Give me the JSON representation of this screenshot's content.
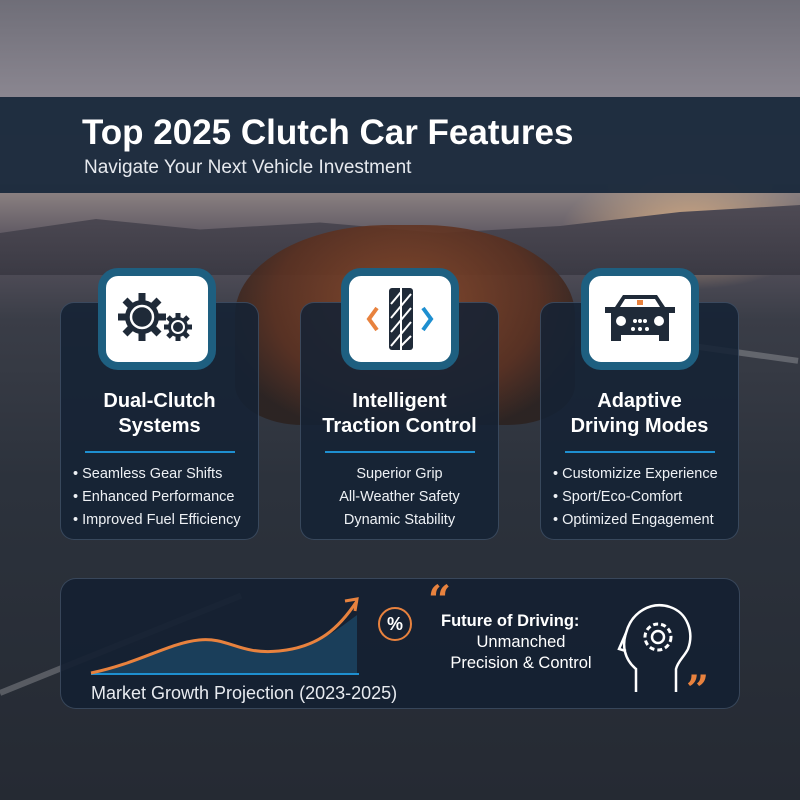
{
  "header": {
    "title": "Top 2025 Clutch Car Features",
    "subtitle": "Navigate Your Next Vehicle Investment"
  },
  "cards": [
    {
      "icon": "gears-icon",
      "title_line1": "Dual-Clutch",
      "title_line2": "Systems",
      "items": [
        "Seamless Gear Shifts",
        "Enhanced Performance",
        "Improved Fuel Efficiency"
      ]
    },
    {
      "icon": "tire-traction-icon",
      "title_line1": "Intelligent",
      "title_line2": "Traction Control",
      "items": [
        "Superior Grip",
        "All-Weather Safety",
        "Dynamic Stability"
      ]
    },
    {
      "icon": "car-front-icon",
      "title_line1": "Adaptive",
      "title_line2": "Driving Modes",
      "items": [
        "Customizize Experience",
        "Sport/Eco-Comfort",
        "Optimized Engagement"
      ]
    }
  ],
  "bottom": {
    "chart_label": "Market Growth Projection (2023-2025)",
    "percent_symbol": "%",
    "quote_open": "“",
    "quote_close": "”",
    "quote_line1": "Future of Driving:",
    "quote_line2": "Unmanched",
    "quote_line3": "Precision & Control"
  },
  "colors": {
    "accent_orange": "#e8823e",
    "accent_blue": "#1e8fd0",
    "panel": "#14223a"
  }
}
